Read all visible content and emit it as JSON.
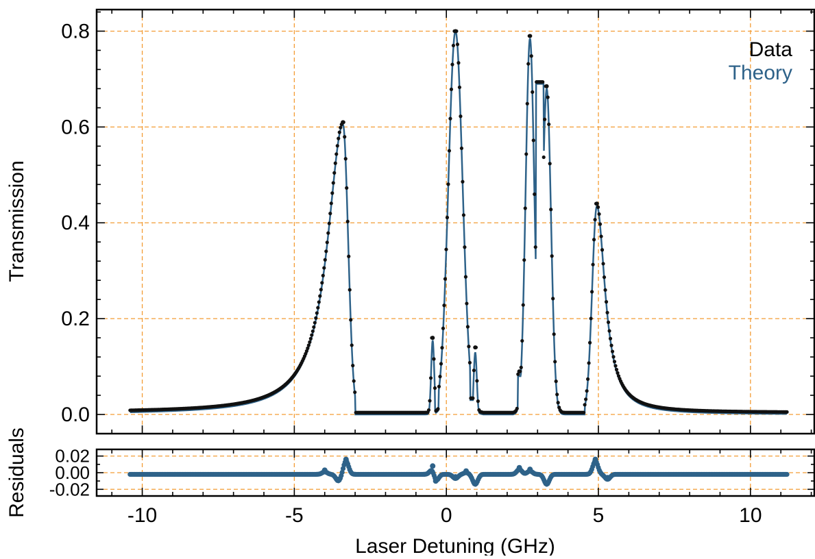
{
  "chart_data": {
    "type": "line",
    "xlabel": "Laser Detuning (GHz)",
    "main": {
      "ylabel": "Transmission",
      "xlim": [
        -11.5,
        12.1
      ],
      "ylim": [
        -0.04,
        0.845
      ],
      "xticks": [
        -10,
        -5,
        0,
        5,
        10
      ],
      "xtick_labels": [
        "-10",
        "-5",
        "0",
        "5",
        "10"
      ],
      "yticks": [
        0.0,
        0.2,
        0.4,
        0.6,
        0.8
      ],
      "ytick_labels": [
        "0.0",
        "0.2",
        "0.4",
        "0.6",
        "0.8"
      ],
      "grid": true,
      "legend_position": "top-right",
      "legend": [
        "Data",
        "Theory"
      ]
    },
    "residuals": {
      "ylabel": "Residuals",
      "ylim": [
        -0.028,
        0.028
      ],
      "yticks": [
        -0.02,
        0.0,
        0.02
      ],
      "ytick_labels": [
        "-0.02",
        "0.00",
        "0.02"
      ],
      "grid": true
    },
    "x_range": [
      -10.4,
      11.2
    ],
    "series": [
      {
        "name": "Data",
        "style": "markers",
        "color": "#111111",
        "peaks": [
          {
            "x": -3.4,
            "y": 0.61
          },
          {
            "x": -0.45,
            "y": 0.16
          },
          {
            "x": 0.3,
            "y": 0.8
          },
          {
            "x": 0.95,
            "y": 0.14
          },
          {
            "x": 2.4,
            "y": 0.09
          },
          {
            "x": 2.75,
            "y": 0.79
          },
          {
            "x": 3.3,
            "y": 0.685
          },
          {
            "x": 4.95,
            "y": 0.44
          }
        ]
      },
      {
        "name": "Theory",
        "style": "line",
        "color": "#2e6289",
        "peaks": [
          {
            "x": -3.4,
            "y": 0.605
          },
          {
            "x": -0.45,
            "y": 0.155
          },
          {
            "x": 0.3,
            "y": 0.8
          },
          {
            "x": 0.95,
            "y": 0.13
          },
          {
            "x": 2.75,
            "y": 0.785
          },
          {
            "x": 3.3,
            "y": 0.68
          },
          {
            "x": 4.95,
            "y": 0.435
          }
        ]
      }
    ],
    "residual_features": [
      {
        "x": -4.0,
        "y": 0.003
      },
      {
        "x": -3.55,
        "y": -0.008
      },
      {
        "x": -3.3,
        "y": 0.016
      },
      {
        "x": -0.45,
        "y": 0.008
      },
      {
        "x": -0.35,
        "y": -0.01
      },
      {
        "x": 0.3,
        "y": -0.005
      },
      {
        "x": 0.65,
        "y": 0.002
      },
      {
        "x": 0.95,
        "y": -0.012
      },
      {
        "x": 2.4,
        "y": 0.006
      },
      {
        "x": 2.75,
        "y": 0.004
      },
      {
        "x": 3.3,
        "y": -0.012
      },
      {
        "x": 4.9,
        "y": 0.016
      },
      {
        "x": 5.3,
        "y": -0.006
      }
    ],
    "colors": {
      "data": "#111111",
      "theory": "#2e6289",
      "grid": "#f39c34",
      "legend_data": "#000000",
      "legend_theory": "#2e6289"
    }
  }
}
